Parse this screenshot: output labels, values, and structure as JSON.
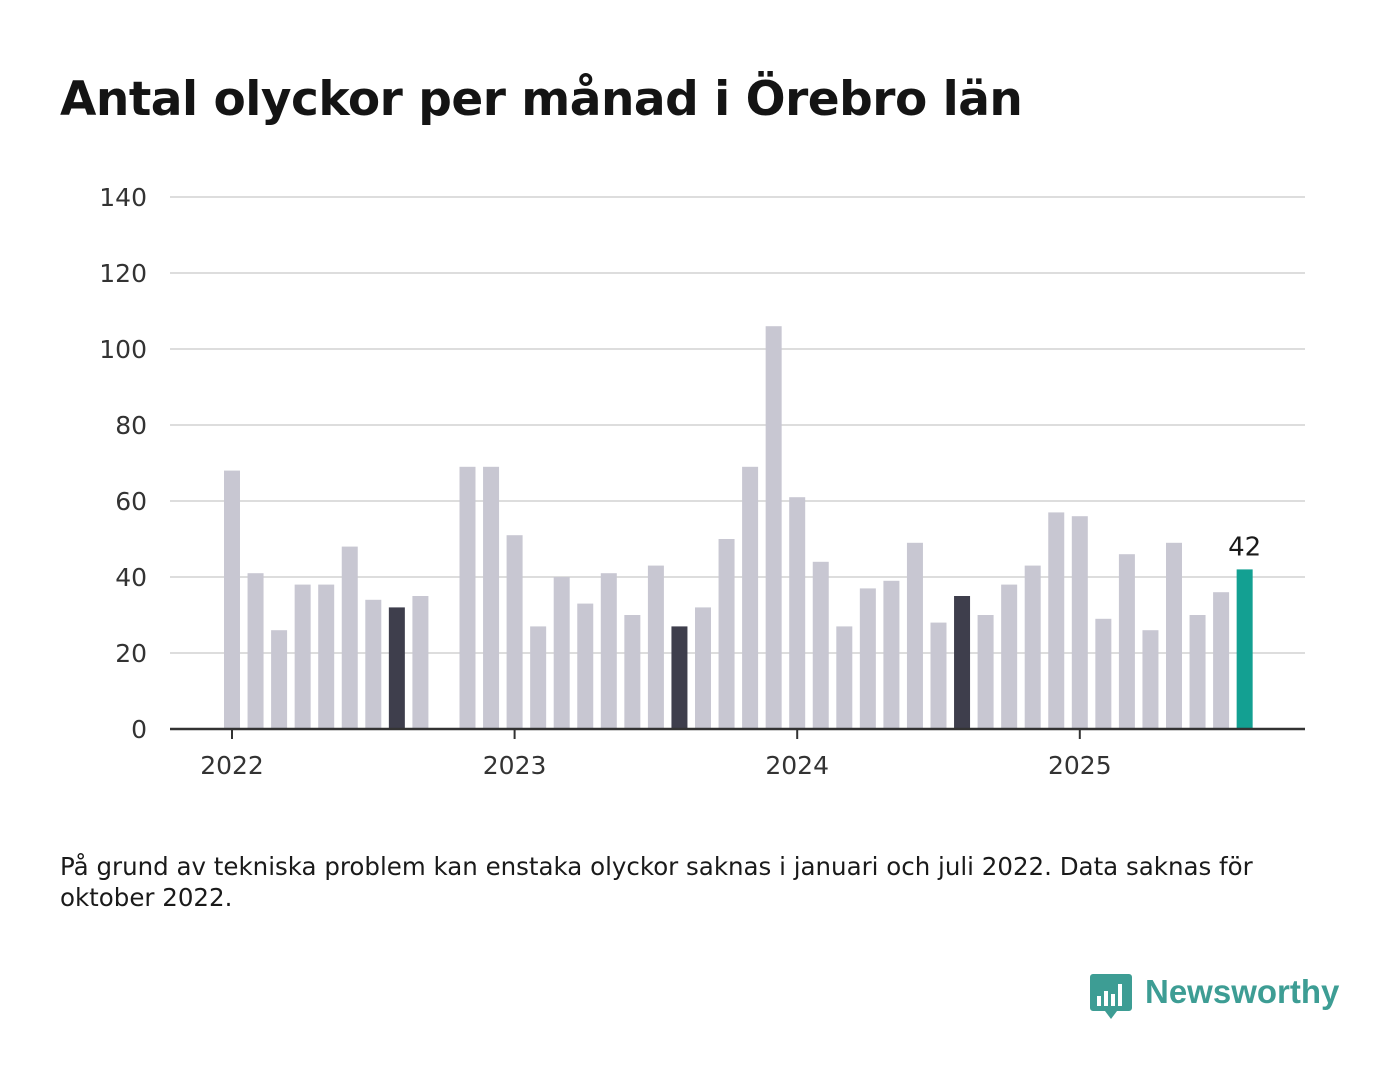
{
  "title": "Antal olyckor per månad i Örebro län",
  "note": "På grund av tekniska problem kan enstaka olyckor saknas i januari och juli 2022. Data saknas för oktober 2022.",
  "brand": {
    "name": "Newsworthy",
    "logo_icon": "bar-chart-speech-bubble-icon"
  },
  "colors": {
    "bar": "#c8c7d2",
    "bar_august": "#3e3e4c",
    "bar_latest": "#13a092",
    "grid": "#dddddd",
    "axis": "#333333",
    "brand": "#3d9d94"
  },
  "chart_data": {
    "type": "bar",
    "title": "Antal olyckor per månad i Örebro län",
    "xlabel": "",
    "ylabel": "",
    "ylim": [
      0,
      140
    ],
    "y_ticks": [
      0,
      20,
      40,
      60,
      80,
      100,
      120,
      140
    ],
    "x_tick_labels": [
      "2022",
      "2023",
      "2024",
      "2025"
    ],
    "grid": true,
    "highlighted_label": "42",
    "categories": [
      "2022-01",
      "2022-02",
      "2022-03",
      "2022-04",
      "2022-05",
      "2022-06",
      "2022-07",
      "2022-08",
      "2022-09",
      "2022-10",
      "2022-11",
      "2022-12",
      "2023-01",
      "2023-02",
      "2023-03",
      "2023-04",
      "2023-05",
      "2023-06",
      "2023-07",
      "2023-08",
      "2023-09",
      "2023-10",
      "2023-11",
      "2023-12",
      "2024-01",
      "2024-02",
      "2024-03",
      "2024-04",
      "2024-05",
      "2024-06",
      "2024-07",
      "2024-08",
      "2024-09",
      "2024-10",
      "2024-11",
      "2024-12",
      "2025-01",
      "2025-02",
      "2025-03",
      "2025-04",
      "2025-05",
      "2025-06",
      "2025-07",
      "2025-08"
    ],
    "values": [
      68,
      41,
      26,
      38,
      38,
      48,
      34,
      32,
      35,
      null,
      69,
      69,
      51,
      27,
      40,
      33,
      41,
      30,
      43,
      27,
      32,
      50,
      69,
      106,
      61,
      44,
      27,
      37,
      39,
      49,
      28,
      35,
      30,
      38,
      43,
      57,
      56,
      29,
      46,
      26,
      49,
      30,
      36,
      42
    ],
    "highlight": {
      "dark": [
        "2022-08",
        "2023-08",
        "2024-08"
      ],
      "accent": [
        "2025-08"
      ]
    }
  }
}
